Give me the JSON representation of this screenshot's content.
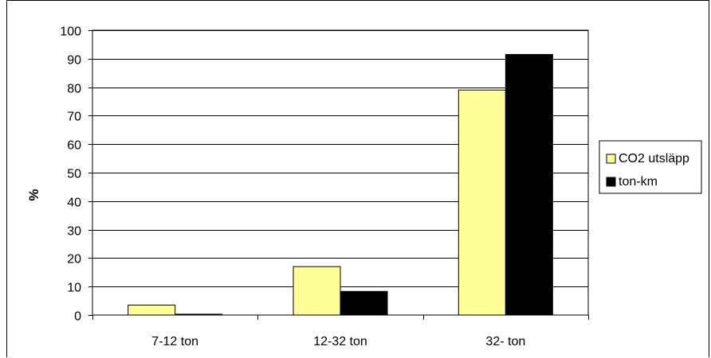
{
  "chart_data": {
    "type": "bar",
    "title": "",
    "xlabel": "",
    "ylabel": "%",
    "ylim": [
      0,
      100
    ],
    "yticks": [
      0,
      10,
      20,
      30,
      40,
      50,
      60,
      70,
      80,
      90,
      100
    ],
    "grid": true,
    "legend_position": "right",
    "categories": [
      "7-12 ton",
      "12-32 ton",
      "32- ton"
    ],
    "series": [
      {
        "name": "CO2 utsläpp",
        "color": "#FFFF99",
        "values": [
          3.5,
          17,
          79
        ]
      },
      {
        "name": "ton-km",
        "color": "#000000",
        "values": [
          0.3,
          8.3,
          91.5
        ]
      }
    ]
  }
}
